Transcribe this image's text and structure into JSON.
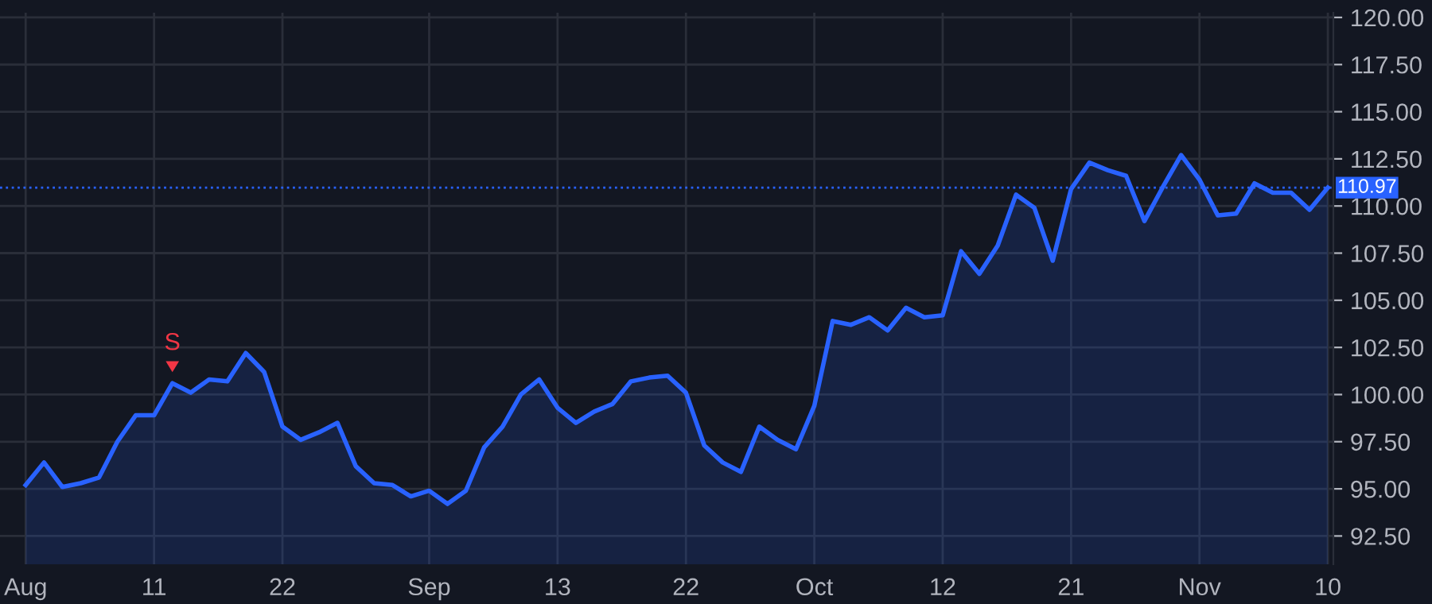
{
  "chart_data": {
    "type": "area",
    "categories": [
      "Aug",
      null,
      null,
      null,
      null,
      null,
      null,
      "11",
      null,
      null,
      null,
      null,
      null,
      null,
      "22",
      null,
      null,
      null,
      null,
      null,
      null,
      null,
      "Sep",
      null,
      null,
      null,
      null,
      null,
      null,
      "13",
      null,
      null,
      null,
      null,
      null,
      null,
      "22",
      null,
      null,
      null,
      null,
      null,
      null,
      "Oct",
      null,
      null,
      null,
      null,
      null,
      null,
      "12",
      null,
      null,
      null,
      null,
      null,
      null,
      "21",
      null,
      null,
      null,
      null,
      null,
      null,
      "Nov",
      null,
      null,
      null,
      null,
      null,
      null,
      "10"
    ],
    "series": [
      {
        "color": "#2962ff",
        "values": [
          95.2,
          96.4,
          95.1,
          95.3,
          95.6,
          97.5,
          98.9,
          98.9,
          100.6,
          100.1,
          100.8,
          100.7,
          102.2,
          101.2,
          98.3,
          97.6,
          98.0,
          98.5,
          96.2,
          95.3,
          95.2,
          94.6,
          94.9,
          94.2,
          94.9,
          97.2,
          98.3,
          100.0,
          100.8,
          99.3,
          98.5,
          99.1,
          99.5,
          100.7,
          100.9,
          101.0,
          100.1,
          97.3,
          96.4,
          95.9,
          98.3,
          97.6,
          97.1,
          99.4,
          103.9,
          103.7,
          104.1,
          103.4,
          104.6,
          104.1,
          104.2,
          107.6,
          106.4,
          107.9,
          110.6,
          109.9,
          107.1,
          110.9,
          112.3,
          111.9,
          111.6,
          109.2,
          111.0,
          112.7,
          111.4,
          109.5,
          109.6,
          111.2,
          110.7,
          110.7,
          109.8,
          110.97
        ]
      }
    ],
    "ylim": [
      91,
      120.25
    ],
    "yticks": [
      {
        "value": 92.5,
        "label": "92.50"
      },
      {
        "value": 95,
        "label": "95.00"
      },
      {
        "value": 97.5,
        "label": "97.50"
      },
      {
        "value": 100,
        "label": "100.00"
      },
      {
        "value": 102.5,
        "label": "102.50"
      },
      {
        "value": 105,
        "label": "105.00"
      },
      {
        "value": 107.5,
        "label": "107.50"
      },
      {
        "value": 110,
        "label": "110.00"
      },
      {
        "value": 112.5,
        "label": "112.50"
      },
      {
        "value": 115,
        "label": "115.00"
      },
      {
        "value": 117.5,
        "label": "117.50"
      },
      {
        "value": 120,
        "label": "120.00"
      }
    ],
    "ref_lines": [
      {
        "axis": "y",
        "value": 110.97,
        "label": "110.97",
        "color": "#2962ff",
        "line_style": "dotted"
      }
    ],
    "annotations": [
      {
        "text": "S",
        "y": 100.6
      }
    ],
    "grid": true,
    "marker": "none",
    "line_style": "solid"
  }
}
